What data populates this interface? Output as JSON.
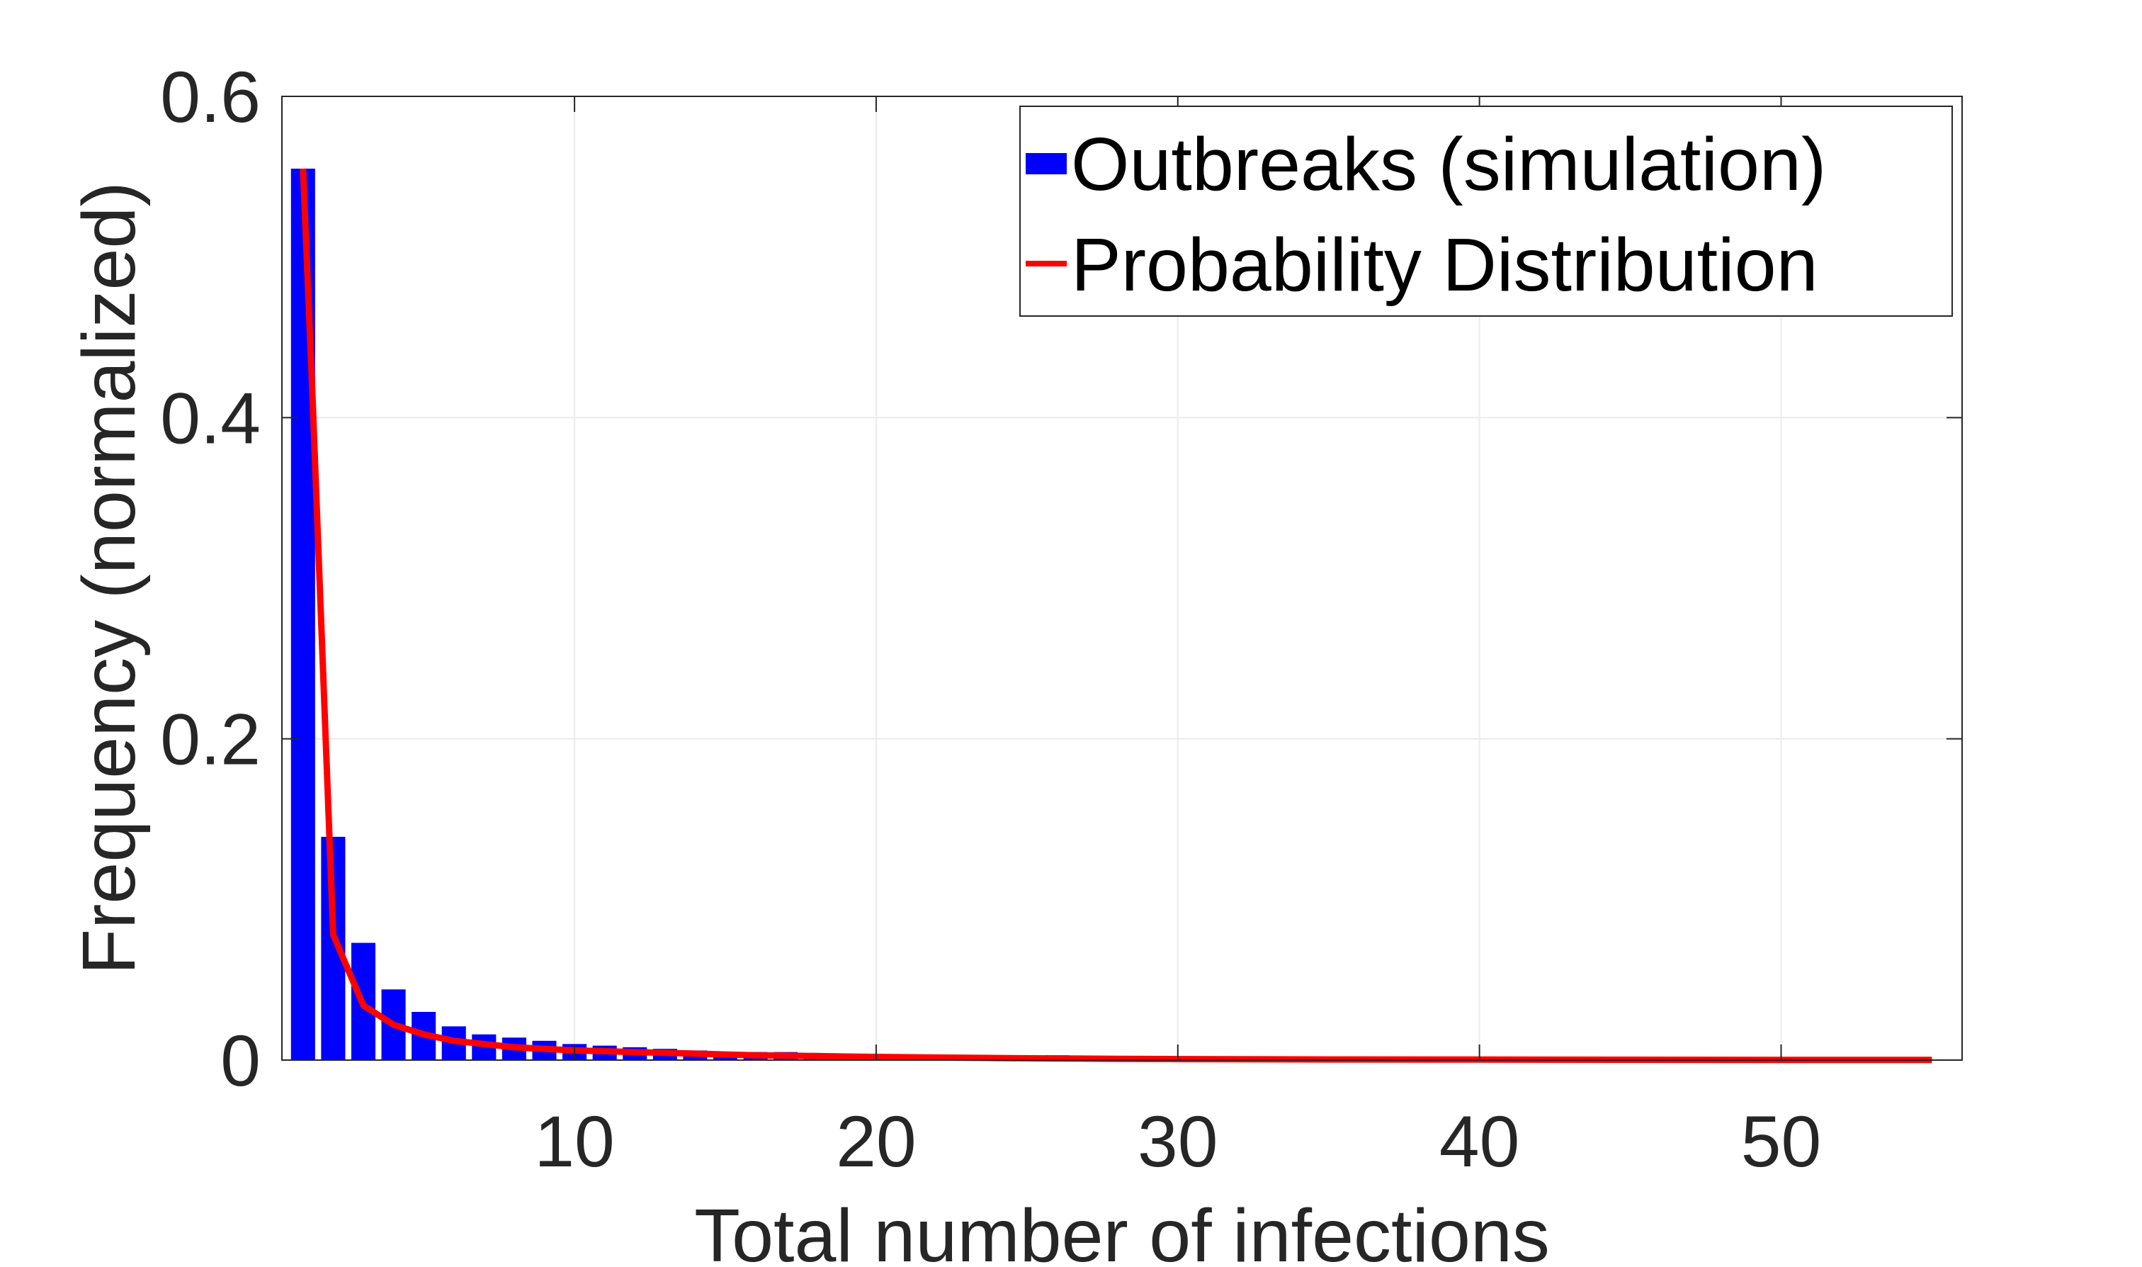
{
  "colors": {
    "bar": "#0000ff",
    "line": "#ff0000",
    "axis": "#262626",
    "grid": "#ebebeb"
  },
  "chart_data": {
    "type": "bar",
    "xlabel": "Total number of infections",
    "ylabel": "Frequency (normalized)",
    "xlim": [
      0.3,
      56
    ],
    "ylim": [
      0,
      0.6
    ],
    "xticks": [
      10,
      20,
      30,
      40,
      50
    ],
    "yticks": [
      0,
      0.2,
      0.4,
      0.6
    ],
    "xtick_labels": [
      "10",
      "20",
      "30",
      "40",
      "50"
    ],
    "ytick_labels": [
      "0",
      "0.2",
      "0.4",
      "0.6"
    ],
    "grid": true,
    "legend": {
      "position": "top-right",
      "entries": [
        "Outbreaks (simulation)",
        "Probability Distribution"
      ]
    },
    "series": [
      {
        "name": "Outbreaks (simulation)",
        "type": "bar",
        "x": [
          1,
          2,
          3,
          4,
          5,
          6,
          7,
          8,
          9,
          10,
          11,
          12,
          13,
          14,
          15,
          16,
          17,
          18,
          19,
          20,
          21,
          22,
          23,
          24,
          25,
          26,
          27,
          28,
          29,
          30
        ],
        "values": [
          0.555,
          0.139,
          0.073,
          0.044,
          0.03,
          0.021,
          0.016,
          0.014,
          0.012,
          0.01,
          0.009,
          0.008,
          0.007,
          0.006,
          0.005,
          0.005,
          0.005,
          0.004,
          0.003,
          0.003,
          0.002,
          0.002,
          0.002,
          0.002,
          0.001,
          0.003,
          0.001,
          0.001,
          0.001,
          0.001
        ]
      },
      {
        "name": "Probability Distribution",
        "type": "line",
        "x": [
          1,
          1.3,
          2,
          3,
          4,
          5,
          6,
          7,
          8,
          9,
          10,
          11,
          12,
          13,
          14,
          15,
          16,
          17,
          18,
          19,
          20,
          22,
          24,
          26,
          28,
          30,
          35,
          40,
          45,
          50,
          55
        ],
        "values": [
          0.555,
          0.42,
          0.078,
          0.034,
          0.022,
          0.016,
          0.012,
          0.01,
          0.008,
          0.007,
          0.006,
          0.0055,
          0.005,
          0.0045,
          0.004,
          0.0035,
          0.003,
          0.0028,
          0.0025,
          0.0022,
          0.002,
          0.0016,
          0.0013,
          0.001,
          0.0008,
          0.0006,
          0.0004,
          0.0003,
          0.0002,
          0.0001,
          0.0001
        ]
      }
    ]
  }
}
